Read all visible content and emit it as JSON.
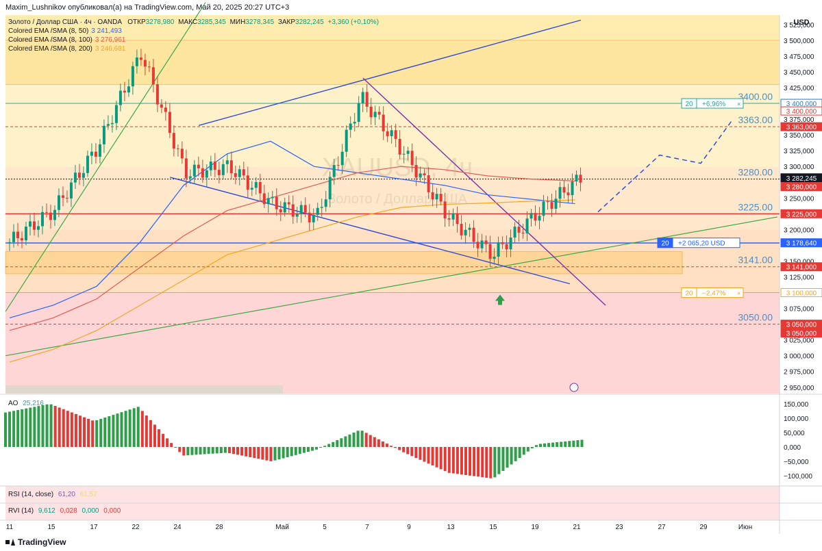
{
  "header": {
    "publisher": "Maxim_Lushnikov опубликовал(а) на TradingView.com, Май 20, 2025 20:27 UTC+3",
    "symbol": "Золото / Доллар США · 4ч · OANDA",
    "open_label": "ОТКР",
    "open": "3278,980",
    "high_label": "МАКС",
    "high": "3285,345",
    "low_label": "МИН",
    "low": "3278,345",
    "close_label": "ЗАКР",
    "close": "3282,245",
    "change": "+3,360 (+0,10%)"
  },
  "indicators": [
    {
      "name": "Colored EMA /SMA (8, 50)",
      "value": "3 241,493",
      "color": "#2962ff"
    },
    {
      "name": "Colored EMA /SMA (8, 100)",
      "value": "3 276,961",
      "color": "#e65a4f"
    },
    {
      "name": "Colored EMA /SMA (8, 200)",
      "value": "3 246,681",
      "color": "#f5a623"
    }
  ],
  "currency": "USD",
  "watermark": "XAUUSD, 4ч",
  "watermark_sub": "Золото / Доллар США",
  "y_axis_ticks": [
    "3 525,000",
    "3 500,000",
    "3 475,000",
    "3 450,000",
    "3 425,000",
    "3 375,000",
    "3 350,000",
    "3 325,000",
    "3 300,000",
    "3 275,000",
    "3 250,000",
    "3 200,000",
    "3 150,000",
    "3 125,000",
    "3 075,000",
    "3 025,000",
    "3 000,000",
    "2 975,000",
    "2 950,000"
  ],
  "price_tags": [
    {
      "text": "3 400,000",
      "price": 3400,
      "bg": "#ffffff",
      "fg": "#2b7bb9",
      "border": "#2b7bb9"
    },
    {
      "text": "3 400,000",
      "price": 3388,
      "bg": "#ffffff",
      "fg": "#e53935",
      "border": "#e53935"
    },
    {
      "text": "3 363,000",
      "price": 3363,
      "bg": "#e53935",
      "fg": "#ffffff",
      "border": "#e53935"
    },
    {
      "text": "3 282,245",
      "price": 3282,
      "bg": "#131722",
      "fg": "#ffffff",
      "border": "#131722"
    },
    {
      "text": "3 280,000",
      "price": 3268,
      "bg": "#e53935",
      "fg": "#ffffff",
      "border": "#e53935"
    },
    {
      "text": "3 225,000",
      "price": 3225,
      "bg": "#e53935",
      "fg": "#ffffff",
      "border": "#e53935"
    },
    {
      "text": "3 178,640",
      "price": 3179,
      "bg": "#2962ff",
      "fg": "#ffffff",
      "border": "#2962ff"
    },
    {
      "text": "3 141,000",
      "price": 3141,
      "bg": "#e53935",
      "fg": "#ffffff",
      "border": "#e53935"
    },
    {
      "text": "3 100,000",
      "price": 3100,
      "bg": "#ffffff",
      "fg": "#f5a623",
      "border": "#f5a623"
    },
    {
      "text": "3 050,000",
      "price": 3050,
      "bg": "#e53935",
      "fg": "#ffffff",
      "border": "#e53935"
    },
    {
      "text": "3 050,000",
      "price": 3036,
      "bg": "#e53935",
      "fg": "#ffffff",
      "border": "#e53935"
    }
  ],
  "level_labels": [
    {
      "text": "3400.00",
      "price": 3400
    },
    {
      "text": "3363.00",
      "price": 3363
    },
    {
      "text": "3280.00",
      "price": 3280
    },
    {
      "text": "3225.00",
      "price": 3225
    },
    {
      "text": "3141.00",
      "price": 3141
    },
    {
      "text": "3050.00",
      "price": 3050
    }
  ],
  "position_boxes": [
    {
      "qty": "20",
      "text": "+6,96%",
      "price": 3400,
      "color": "#26a69a"
    },
    {
      "qty": "20",
      "text": "+2 065,20 USD",
      "price": 3179,
      "color": "#2962ff"
    },
    {
      "qty": "20",
      "text": "−2,47%",
      "price": 3100,
      "color": "#f5a623"
    }
  ],
  "ao": {
    "label": "AO",
    "value": "25,216",
    "ticks": [
      "150,000",
      "100,000",
      "50,000",
      "0,000",
      "−50,000",
      "−100,000"
    ]
  },
  "rsi": {
    "label": "RSI (14, close)",
    "value1": "61,20",
    "value2": "61,57"
  },
  "rvi": {
    "label": "RVI (14)",
    "v1": "9,612",
    "v2": "0,028",
    "v3": "0,000",
    "v4": "0,000"
  },
  "x_axis_labels": [
    "11",
    "15",
    "17",
    "22",
    "24",
    "28",
    "Май",
    "5",
    "7",
    "9",
    "13",
    "15",
    "19",
    "21",
    "23",
    "27",
    "29",
    "Июн"
  ],
  "footer": {
    "brand": "TradingView"
  },
  "chart_data": {
    "type": "line",
    "title": "Золото / Доллар США · 4ч · OANDA",
    "ylabel": "USD",
    "ylim": [
      2940,
      3540
    ],
    "x": [
      "11",
      "15",
      "17",
      "22",
      "24",
      "28",
      "Май",
      "5",
      "7",
      "9",
      "13",
      "15",
      "19",
      "21"
    ],
    "series": [
      {
        "name": "Colored EMA /SMA (8, 50)",
        "values": [
          3060,
          3080,
          3110,
          3180,
          3270,
          3320,
          3340,
          3300,
          3290,
          3280,
          3270,
          3255,
          3248,
          3241
        ]
      },
      {
        "name": "Colored EMA /SMA (8, 100)",
        "values": [
          3040,
          3060,
          3090,
          3140,
          3190,
          3230,
          3250,
          3270,
          3290,
          3300,
          3295,
          3285,
          3280,
          3277
        ]
      },
      {
        "name": "Colored EMA /SMA (8, 200)",
        "values": [
          2990,
          3010,
          3040,
          3080,
          3120,
          3160,
          3180,
          3200,
          3220,
          3235,
          3240,
          3242,
          3245,
          3247
        ]
      },
      {
        "name": "Close",
        "values": [
          3180,
          3230,
          3330,
          3480,
          3290,
          3300,
          3240,
          3220,
          3410,
          3320,
          3220,
          3160,
          3225,
          3282
        ]
      }
    ],
    "horizontal_levels": [
      3400,
      3363,
      3280,
      3225,
      3178.64,
      3141,
      3100,
      3050
    ],
    "ao_values": [
      120,
      150,
      90,
      140,
      -30,
      -20,
      -50,
      -10,
      60,
      -20,
      -90,
      -110,
      10,
      25
    ]
  }
}
